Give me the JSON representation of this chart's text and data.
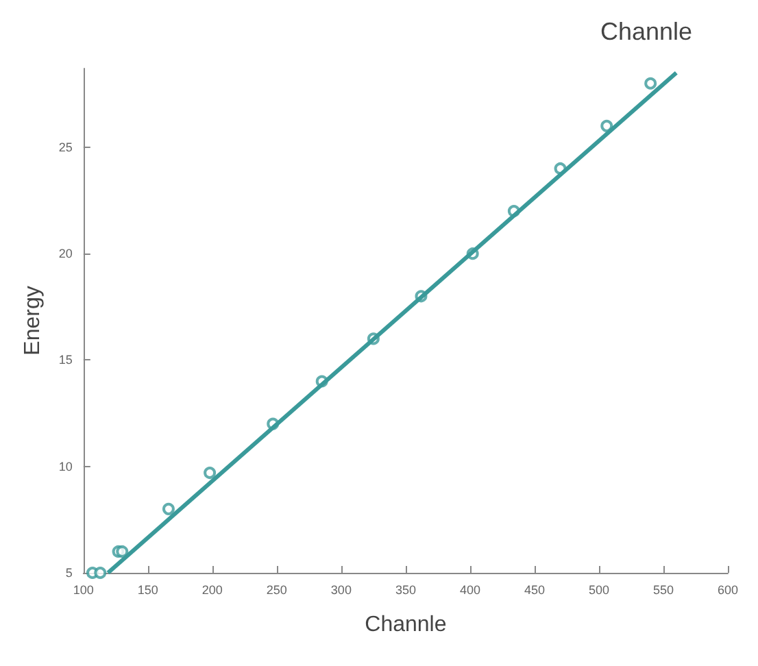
{
  "chart_data": {
    "type": "scatter",
    "xlabel": "Channle",
    "ylabel": "Energy",
    "annotations": [
      "Channle"
    ],
    "xlim": [
      100,
      600
    ],
    "xticks": [
      100,
      150,
      200,
      250,
      300,
      350,
      400,
      450,
      500,
      550,
      600
    ],
    "ylim": [
      5,
      28.7
    ],
    "yticks": [
      5,
      10,
      15,
      20,
      25
    ],
    "grid": false,
    "series": [
      {
        "marker": "circle",
        "color": "#3a9a9a",
        "x": [
          107,
          113,
          127,
          130,
          166,
          198,
          247,
          285,
          325,
          362,
          402,
          434,
          470,
          506,
          540
        ],
        "values": [
          5,
          5,
          6,
          6,
          8,
          9.7,
          12,
          14,
          16,
          18,
          20,
          22,
          24,
          26,
          28
        ]
      },
      {
        "type": "line",
        "color": "#3a9a9a",
        "line_style": "solid",
        "x": [
          119,
          560
        ],
        "values": [
          5,
          28.5
        ]
      }
    ]
  }
}
